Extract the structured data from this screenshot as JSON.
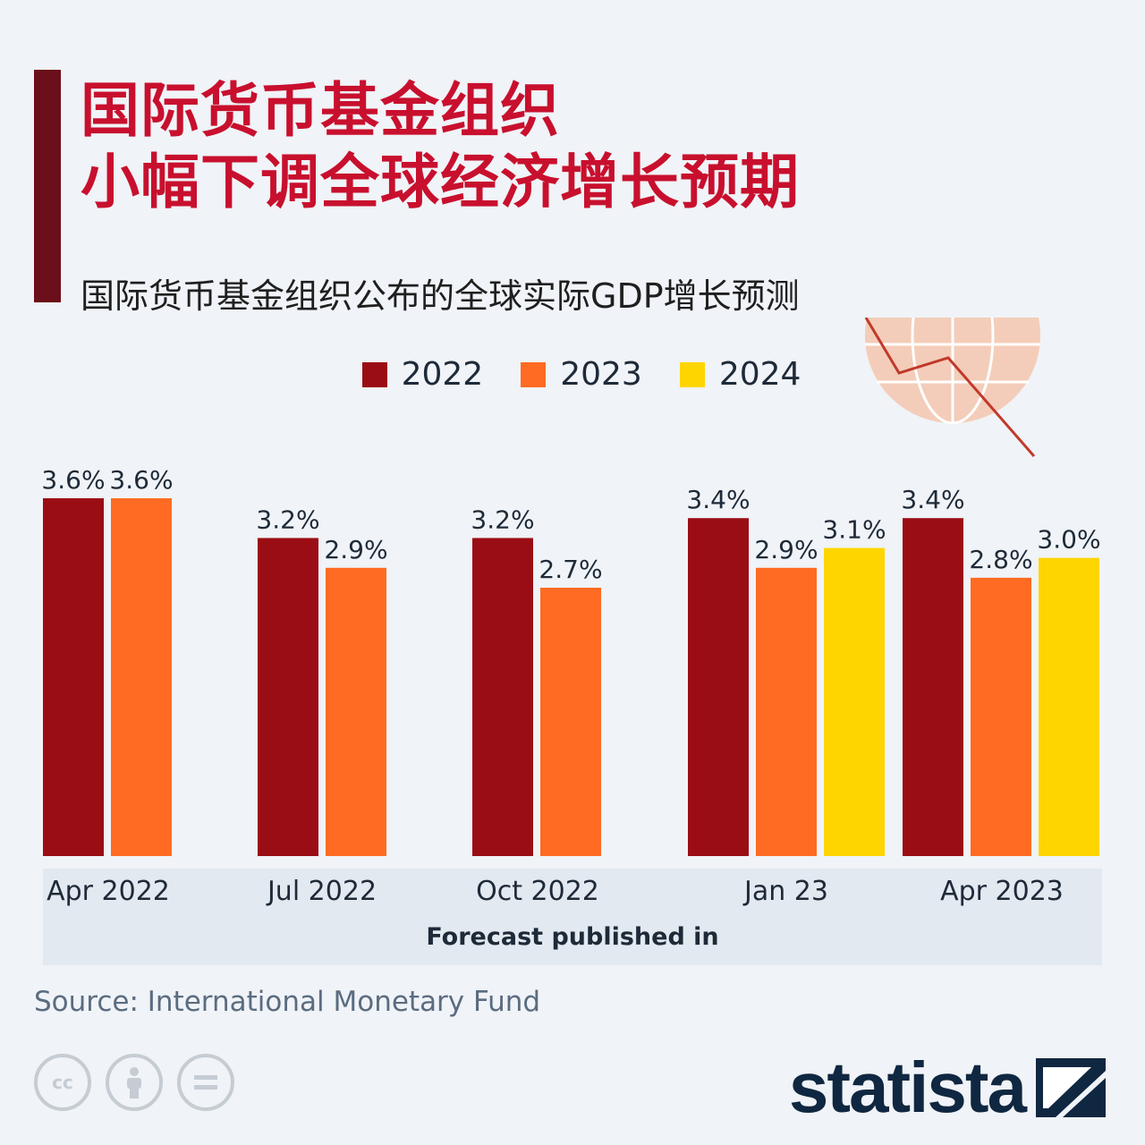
{
  "title": {
    "line1": "国际货币基金组织",
    "line2": "小幅下调全球经济增长预期"
  },
  "subtitle": "国际货币基金组织公布的全球实际GDP增长预测",
  "legend": [
    {
      "label": "2022",
      "color": "#9b0d14"
    },
    {
      "label": "2023",
      "color": "#ff6b22"
    },
    {
      "label": "2024",
      "color": "#ffd500"
    }
  ],
  "chart_data": {
    "type": "bar",
    "categories": [
      "Apr 2022",
      "Jul 2022",
      "Oct 2022",
      "Jan 23",
      "Apr 2023"
    ],
    "series": [
      {
        "name": "2022",
        "color": "#9b0d14",
        "values": [
          3.6,
          3.2,
          3.2,
          3.4,
          3.4
        ]
      },
      {
        "name": "2023",
        "color": "#ff6b22",
        "values": [
          3.6,
          2.9,
          2.7,
          2.9,
          2.8
        ]
      },
      {
        "name": "2024",
        "color": "#ffd500",
        "values": [
          null,
          null,
          null,
          3.1,
          3.0
        ]
      }
    ],
    "value_labels": [
      [
        "3.6%",
        "3.6%",
        null
      ],
      [
        "3.2%",
        "2.9%",
        null
      ],
      [
        "3.2%",
        "2.7%",
        null
      ],
      [
        "3.4%",
        "2.9%",
        "3.1%"
      ],
      [
        "3.4%",
        "2.8%",
        "3.0%"
      ]
    ],
    "xlabel": "Forecast published in",
    "ylabel": "",
    "ylim": [
      0,
      3.6
    ],
    "grid": false,
    "legend_position": "top-center"
  },
  "source": "Source: International Monetary Fund",
  "license_icons": [
    "cc-icon",
    "attribution-icon",
    "no-derivatives-icon"
  ],
  "brand": {
    "name": "statista"
  }
}
